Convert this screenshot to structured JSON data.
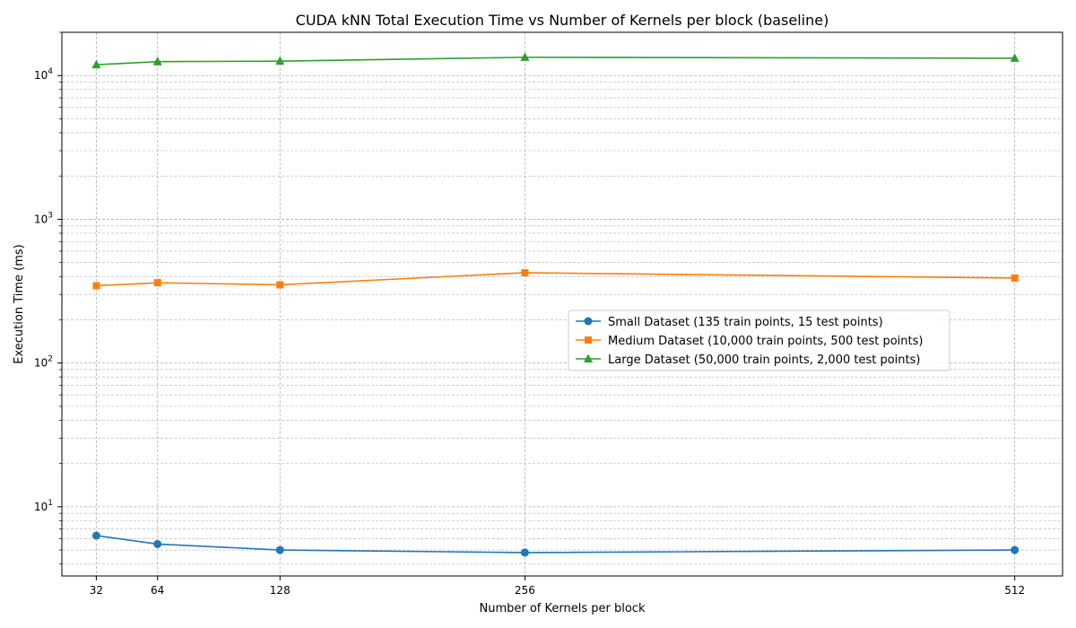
{
  "chart_data": {
    "type": "line",
    "title": "CUDA kNN Total Execution Time vs Number of Kernels per block (baseline)",
    "xlabel": "Number of Kernels per block",
    "ylabel": "Execution Time (ms)",
    "x": [
      32,
      64,
      128,
      256,
      512
    ],
    "x_tick_labels": [
      "32",
      "64",
      "128",
      "256",
      "512"
    ],
    "xlim": [
      14,
      537
    ],
    "ylim": [
      3.3,
      20000
    ],
    "yscale": "log",
    "y_tick_labels": [
      {
        "base": "10",
        "exp": "1",
        "value": 10
      },
      {
        "base": "10",
        "exp": "2",
        "value": 100
      },
      {
        "base": "10",
        "exp": "3",
        "value": 1000
      },
      {
        "base": "10",
        "exp": "4",
        "value": 10000
      }
    ],
    "grid": true,
    "legend_position": "center-right",
    "series": [
      {
        "name": "Small Dataset (135 train points, 15 test points)",
        "values": [
          6.3,
          5.5,
          5.0,
          4.8,
          5.0
        ],
        "color": "#1f77b4",
        "marker": "circle"
      },
      {
        "name": "Medium Dataset (10,000 train points, 500 test points)",
        "values": [
          345,
          362,
          350,
          425,
          390
        ],
        "color": "#ff7f0e",
        "marker": "square"
      },
      {
        "name": "Large Dataset (50,000 train points, 2,000 test points)",
        "values": [
          11900,
          12500,
          12600,
          13400,
          13200
        ],
        "color": "#2ca02c",
        "marker": "triangle"
      }
    ]
  }
}
